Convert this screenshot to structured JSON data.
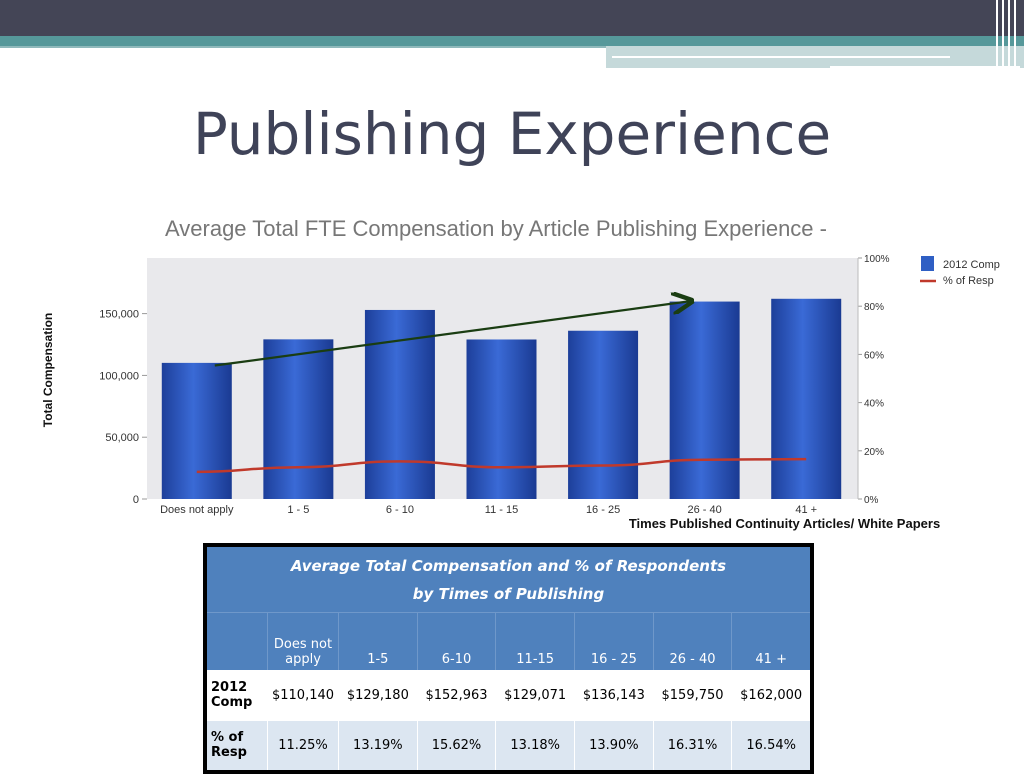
{
  "slide_title": "Publishing Experience",
  "chart_data": {
    "type": "bar",
    "title": "Average Total FTE Compensation by Article Publishing Experience -",
    "xlabel": "Times Published Continuity Articles/ White Papers",
    "ylabel": "Total Compensation",
    "categories": [
      "Does not apply",
      "1 - 5",
      "6 - 10",
      "11 - 15",
      "16 - 25",
      "26 - 40",
      "41 +"
    ],
    "ylim": [
      0,
      195000
    ],
    "y_ticks": [
      0,
      50000,
      100000,
      150000
    ],
    "y_tick_labels": [
      "0",
      "50,000",
      "100,000",
      "150,000"
    ],
    "y2_ticks": [
      0,
      20,
      40,
      60,
      80,
      100
    ],
    "y2_tick_labels": [
      "0%",
      "20%",
      "40%",
      "60%",
      "80%",
      "100%"
    ],
    "series": [
      {
        "name": "2012 Comp",
        "type": "bar",
        "color": "#2f5fc4",
        "values": [
          110140,
          129180,
          152963,
          129071,
          136143,
          159750,
          162000
        ]
      },
      {
        "name": "% of Resp",
        "type": "line",
        "axis": "secondary",
        "color": "#c0392b",
        "values": [
          11.25,
          13.19,
          15.62,
          13.18,
          13.9,
          16.31,
          16.54
        ]
      }
    ],
    "annotations": [
      {
        "type": "arrow",
        "description": "upward trend arrow",
        "from": [
          0,
          108000
        ],
        "to": [
          5,
          160000
        ],
        "color": "#1a3d12"
      }
    ],
    "legend": "right",
    "grid": false
  },
  "table": {
    "title_line1": "Average Total Compensation and % of Respondents",
    "title_line2": "by Times of Publishing",
    "headers": [
      "Does not apply",
      "1-5",
      "6-10",
      "11-15",
      "16 - 25",
      "26 - 40",
      "41 +"
    ],
    "rows": [
      {
        "label_line1": "2012",
        "label_line2": "Comp",
        "cells": [
          "$110,140",
          "$129,180",
          "$152,963",
          "$129,071",
          "$136,143",
          "$159,750",
          "$162,000"
        ]
      },
      {
        "label_line1": "% of",
        "label_line2": "Resp",
        "cells": [
          "11.25%",
          "13.19%",
          "15.62%",
          "13.18%",
          "13.90%",
          "16.31%",
          "16.54%"
        ]
      }
    ]
  },
  "colors": {
    "title": "#3f4358",
    "table_header": "#4f81bd",
    "table_alt_row": "#dce6f1",
    "bar": "#2f5fc4",
    "line": "#c0392b"
  }
}
